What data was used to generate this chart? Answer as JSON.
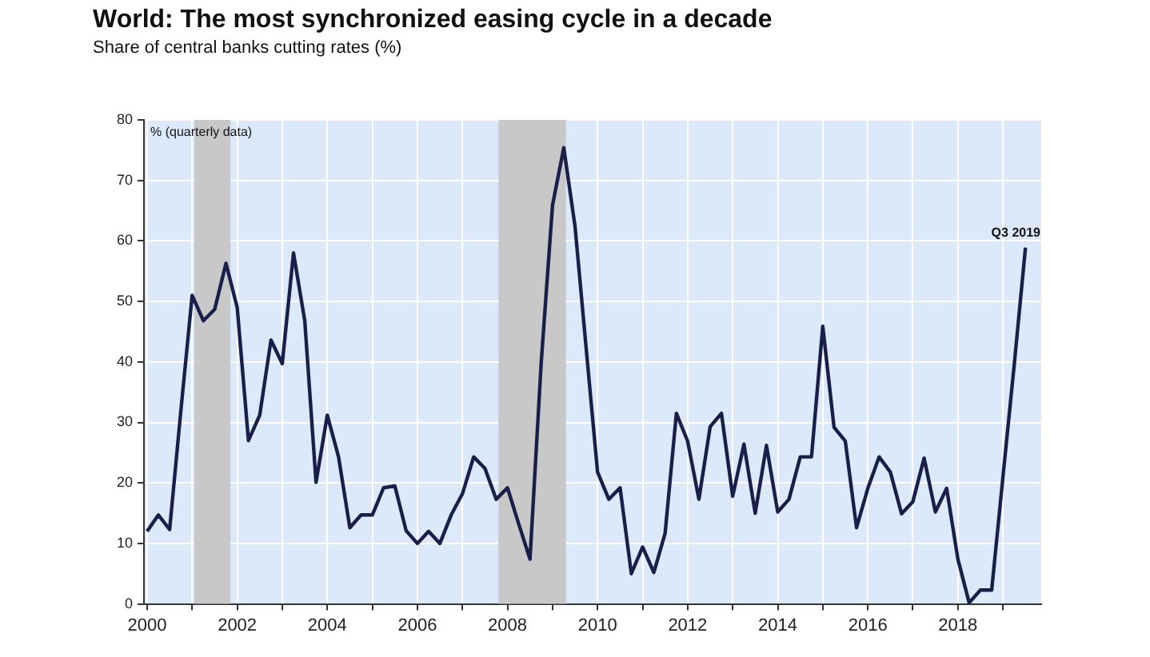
{
  "chart_data": {
    "type": "line",
    "title": "World: The most synchronized easing cycle in a decade",
    "subtitle": "Share of central banks cutting rates (%)",
    "x": [
      2000,
      2000.25,
      2000.5,
      2000.75,
      2001,
      2001.25,
      2001.5,
      2001.75,
      2002,
      2002.25,
      2002.5,
      2002.75,
      2003,
      2003.25,
      2003.5,
      2003.75,
      2004,
      2004.25,
      2004.5,
      2004.75,
      2005,
      2005.25,
      2005.5,
      2005.75,
      2006,
      2006.25,
      2006.5,
      2006.75,
      2007,
      2007.25,
      2007.5,
      2007.75,
      2008,
      2008.25,
      2008.5,
      2008.75,
      2009,
      2009.25,
      2009.5,
      2009.75,
      2010,
      2010.25,
      2010.5,
      2010.75,
      2011,
      2011.25,
      2011.5,
      2011.75,
      2012,
      2012.25,
      2012.5,
      2012.75,
      2013,
      2013.25,
      2013.5,
      2013.75,
      2014,
      2014.25,
      2014.5,
      2014.75,
      2015,
      2015.25,
      2015.5,
      2015.75,
      2016,
      2016.25,
      2016.5,
      2016.75,
      2017,
      2017.25,
      2017.5,
      2017.75,
      2018,
      2018.25,
      2018.5,
      2018.75,
      2019,
      2019.25,
      2019.5
    ],
    "series": [
      {
        "color": "#1a1f4a",
        "values": [
          12,
          14.7,
          12.3,
          32,
          51,
          46.8,
          48.7,
          56.3,
          49,
          27,
          31.2,
          43.6,
          39.7,
          58,
          46.8,
          20.1,
          31.2,
          24.3,
          12.6,
          14.7,
          14.7,
          19.2,
          19.5,
          12.1,
          10,
          12,
          10,
          14.7,
          18.2,
          24.3,
          22.4,
          17.3,
          19.2,
          13.2,
          7.4,
          40,
          65.9,
          75.4,
          62.4,
          42,
          21.8,
          17.3,
          19.2,
          5,
          9.4,
          5.2,
          11.7,
          31.5,
          26.9,
          17.3,
          29.3,
          31.5,
          17.8,
          26.4,
          15,
          26.2,
          15.2,
          17.3,
          24.3,
          24.3,
          45.9,
          29.2,
          26.9,
          12.6,
          19.1,
          24.3,
          21.8,
          14.9,
          16.9,
          24.1,
          15.2,
          19.1,
          7.4,
          0.2,
          2.3,
          2.3,
          21,
          39.5,
          58.9
        ]
      }
    ],
    "xlim": [
      1999.93,
      2019.85
    ],
    "ylim": [
      0,
      80
    ],
    "xticks": [
      2000,
      {
        "value": 2001,
        "label": null
      },
      2002,
      {
        "value": 2003,
        "label": null
      },
      2004,
      {
        "value": 2005,
        "label": null
      },
      2006,
      {
        "value": 2007,
        "label": null
      },
      2008,
      {
        "value": 2009,
        "label": null
      },
      2010,
      {
        "value": 2011,
        "label": null
      },
      2012,
      {
        "value": 2013,
        "label": null
      },
      2014,
      {
        "value": 2015,
        "label": null
      },
      2016,
      {
        "value": 2017,
        "label": null
      },
      2018,
      {
        "value": 2019,
        "label": null
      }
    ],
    "yticks": [
      0,
      10,
      20,
      30,
      40,
      50,
      60,
      70,
      80
    ],
    "grid": true,
    "marker": "none",
    "line_style": "solid",
    "bands": [
      {
        "axis": "x",
        "from": 2001.05,
        "to": 2001.85,
        "color": "#c8c8c8"
      },
      {
        "axis": "x",
        "from": 2007.8,
        "to": 2009.3,
        "color": "#c8c8c8"
      }
    ],
    "annotations": [
      "% (quarterly data)",
      {
        "text": "Q3 2019",
        "x": 2019.5,
        "y": 58.9
      }
    ]
  }
}
